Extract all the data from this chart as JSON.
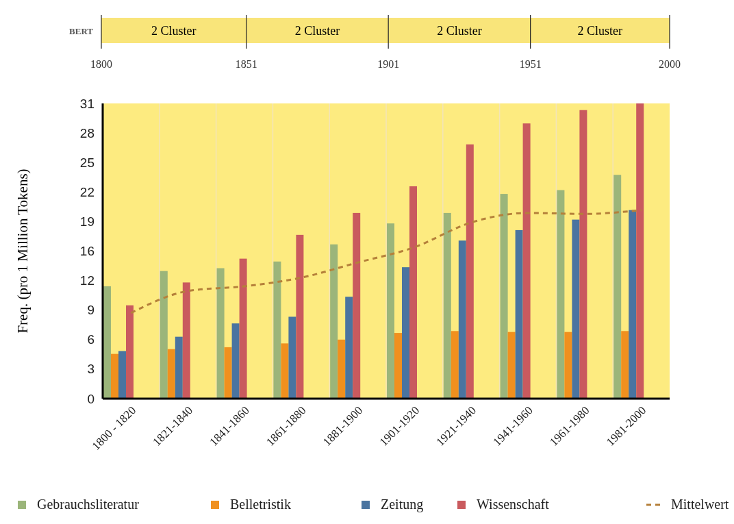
{
  "chart_data": [
    {
      "type": "bar",
      "orientation": "horizontal",
      "categories": [
        "BERT"
      ],
      "xlim": [
        1800,
        2000
      ],
      "xticks": [
        1800,
        1851,
        1901,
        1951,
        2000
      ],
      "grid": "x",
      "bands": [
        {
          "axis": "x",
          "from": 1800,
          "to": 1851,
          "label": "2 Cluster",
          "color": "#f9e57a"
        },
        {
          "axis": "x",
          "from": 1851,
          "to": 1901,
          "label": "2 Cluster",
          "color": "#f9e57a"
        },
        {
          "axis": "x",
          "from": 1901,
          "to": 1951,
          "label": "2 Cluster",
          "color": "#f9e57a"
        },
        {
          "axis": "x",
          "from": 1951,
          "to": 2000,
          "label": "2 Cluster",
          "color": "#f9e57a"
        }
      ]
    },
    {
      "type": "bar",
      "ylabel": "Freq. (pro 1 Million Tokens)",
      "categories": [
        "1800 - 1820",
        "1821-1840",
        "1841-1860",
        "1861-1880",
        "1881-1900",
        "1901-1920",
        "1921-1940",
        "1941-1960",
        "1961-1980",
        "1981-2000"
      ],
      "ylim": [
        0,
        31
      ],
      "yticks": [
        0,
        {
          "value": 3.1,
          "label": "3"
        },
        {
          "value": 6.2,
          "label": "6"
        },
        {
          "value": 9.3,
          "label": "9"
        },
        {
          "value": 12.4,
          "label": "12"
        },
        {
          "value": 15.5,
          "label": "16"
        },
        {
          "value": 18.6,
          "label": "19"
        },
        {
          "value": 21.7,
          "label": "22"
        },
        {
          "value": 24.8,
          "label": "25"
        },
        {
          "value": 27.9,
          "label": "28"
        },
        31
      ],
      "grid": "x",
      "legend": "bottom",
      "series": [
        {
          "name": "Gebrauchsliteratur",
          "color": "#9bb57a",
          "values": [
            11.8,
            13.4,
            13.7,
            14.4,
            16.2,
            18.4,
            19.5,
            21.5,
            21.9,
            23.5
          ]
        },
        {
          "name": "Belletristik",
          "color": "#f0901e",
          "values": [
            4.7,
            5.2,
            5.4,
            5.8,
            6.2,
            6.9,
            7.1,
            7.0,
            7.0,
            7.1
          ]
        },
        {
          "name": "Zeitung",
          "color": "#4a74a0",
          "values": [
            5.0,
            6.5,
            7.9,
            8.6,
            10.7,
            13.8,
            16.6,
            17.7,
            18.8,
            19.8
          ]
        },
        {
          "name": "Wissenschaft",
          "color": "#c95a5e",
          "values": [
            9.8,
            12.2,
            14.7,
            17.2,
            19.5,
            22.3,
            26.7,
            28.9,
            30.3,
            31
          ]
        },
        {
          "name": "Mittelwert",
          "type": "line",
          "color": "#b5803a",
          "line_style": "dashed",
          "marker": "none",
          "values": [
            9.0,
            11.3,
            11.8,
            12.7,
            14.3,
            15.9,
            18.5,
            19.5,
            19.4,
            19.8
          ]
        }
      ]
    }
  ]
}
